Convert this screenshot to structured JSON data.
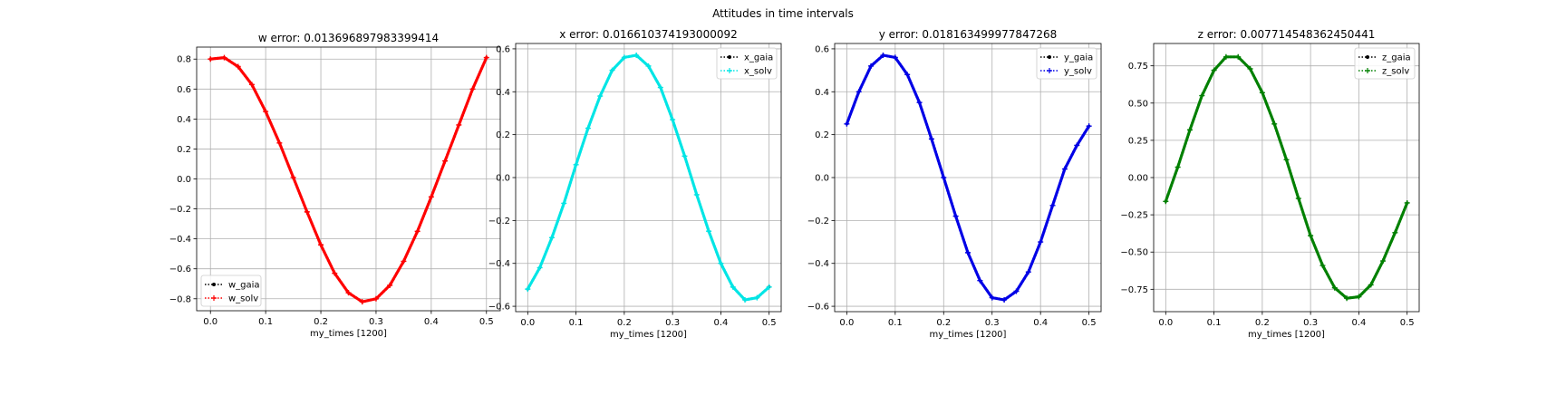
{
  "figure": {
    "suptitle": "Attitudes in time intervals"
  },
  "chart_data": [
    {
      "type": "line",
      "title": "w error: 0.013696897983399414",
      "xlabel": "my_times [1200]",
      "ylabel": "",
      "xlim": [
        -0.025,
        0.525
      ],
      "ylim": [
        -0.88,
        0.88
      ],
      "xticks": [
        "0.0",
        "0.1",
        "0.2",
        "0.3",
        "0.4",
        "0.5"
      ],
      "xtick_values": [
        0.0,
        0.1,
        0.2,
        0.3,
        0.4,
        0.5
      ],
      "yticks": [
        "−0.8",
        "−0.6",
        "−0.4",
        "−0.2",
        "0.0",
        "0.2",
        "0.4",
        "0.6",
        "0.8"
      ],
      "ytick_values": [
        -0.8,
        -0.6,
        -0.4,
        -0.2,
        0.0,
        0.2,
        0.4,
        0.6,
        0.8
      ],
      "grid": true,
      "legend_position": "lower-left",
      "x": [
        0.0,
        0.025,
        0.05,
        0.075,
        0.1,
        0.125,
        0.15,
        0.175,
        0.2,
        0.225,
        0.25,
        0.275,
        0.3,
        0.325,
        0.35,
        0.375,
        0.4,
        0.425,
        0.45,
        0.475,
        0.5
      ],
      "series": [
        {
          "name": "w_gaia",
          "color": "#000000",
          "style": "dotted",
          "marker": "dot",
          "values": [
            0.8,
            0.81,
            0.75,
            0.63,
            0.45,
            0.24,
            0.01,
            -0.22,
            -0.44,
            -0.63,
            -0.76,
            -0.82,
            -0.8,
            -0.71,
            -0.55,
            -0.35,
            -0.12,
            0.12,
            0.36,
            0.6,
            0.81
          ]
        },
        {
          "name": "w_solv",
          "color": "#ff0000",
          "style": "dotted",
          "marker": "plus",
          "values": [
            0.8,
            0.81,
            0.75,
            0.63,
            0.45,
            0.24,
            0.01,
            -0.22,
            -0.44,
            -0.63,
            -0.76,
            -0.82,
            -0.8,
            -0.71,
            -0.55,
            -0.35,
            -0.12,
            0.12,
            0.36,
            0.6,
            0.81
          ]
        }
      ]
    },
    {
      "type": "line",
      "title": "x error: 0.016610374193000092",
      "xlabel": "my_times [1200]",
      "ylabel": "",
      "xlim": [
        -0.025,
        0.525
      ],
      "ylim": [
        -0.625,
        0.625
      ],
      "xticks": [
        "0.0",
        "0.1",
        "0.2",
        "0.3",
        "0.4",
        "0.5"
      ],
      "xtick_values": [
        0.0,
        0.1,
        0.2,
        0.3,
        0.4,
        0.5
      ],
      "yticks": [
        "−0.6",
        "−0.4",
        "−0.2",
        "0.0",
        "0.2",
        "0.4",
        "0.6"
      ],
      "ytick_values": [
        -0.6,
        -0.4,
        -0.2,
        0.0,
        0.2,
        0.4,
        0.6
      ],
      "grid": true,
      "legend_position": "upper-right",
      "x": [
        0.0,
        0.025,
        0.05,
        0.075,
        0.1,
        0.125,
        0.15,
        0.175,
        0.2,
        0.225,
        0.25,
        0.275,
        0.3,
        0.325,
        0.35,
        0.375,
        0.4,
        0.425,
        0.45,
        0.475,
        0.5
      ],
      "series": [
        {
          "name": "x_gaia",
          "color": "#000000",
          "style": "dotted",
          "marker": "dot",
          "values": [
            -0.52,
            -0.42,
            -0.28,
            -0.12,
            0.06,
            0.23,
            0.38,
            0.5,
            0.56,
            0.57,
            0.52,
            0.42,
            0.27,
            0.1,
            -0.08,
            -0.25,
            -0.4,
            -0.51,
            -0.57,
            -0.56,
            -0.51
          ]
        },
        {
          "name": "x_solv",
          "color": "#00e5e5",
          "style": "dotted",
          "marker": "plus",
          "values": [
            -0.52,
            -0.42,
            -0.28,
            -0.12,
            0.06,
            0.23,
            0.38,
            0.5,
            0.56,
            0.57,
            0.52,
            0.42,
            0.27,
            0.1,
            -0.08,
            -0.25,
            -0.4,
            -0.51,
            -0.57,
            -0.56,
            -0.51
          ]
        }
      ]
    },
    {
      "type": "line",
      "title": "y error: 0.018163499977847268",
      "xlabel": "my_times [1200]",
      "ylabel": "",
      "xlim": [
        -0.025,
        0.525
      ],
      "ylim": [
        -0.625,
        0.625
      ],
      "xticks": [
        "0.0",
        "0.1",
        "0.2",
        "0.3",
        "0.4",
        "0.5"
      ],
      "xtick_values": [
        0.0,
        0.1,
        0.2,
        0.3,
        0.4,
        0.5
      ],
      "yticks": [
        "−0.6",
        "−0.4",
        "−0.2",
        "0.0",
        "0.2",
        "0.4",
        "0.6"
      ],
      "ytick_values": [
        -0.6,
        -0.4,
        -0.2,
        0.0,
        0.2,
        0.4,
        0.6
      ],
      "grid": true,
      "legend_position": "upper-right",
      "x": [
        0.0,
        0.025,
        0.05,
        0.075,
        0.1,
        0.125,
        0.15,
        0.175,
        0.2,
        0.225,
        0.25,
        0.275,
        0.3,
        0.325,
        0.35,
        0.375,
        0.4,
        0.425,
        0.45,
        0.475,
        0.5
      ],
      "series": [
        {
          "name": "y_gaia",
          "color": "#000000",
          "style": "dotted",
          "marker": "dot",
          "values": [
            0.25,
            0.4,
            0.52,
            0.57,
            0.56,
            0.48,
            0.35,
            0.18,
            0.0,
            -0.18,
            -0.35,
            -0.48,
            -0.56,
            -0.57,
            -0.53,
            -0.44,
            -0.3,
            -0.13,
            0.04,
            0.15,
            0.24
          ]
        },
        {
          "name": "y_solv",
          "color": "#0000e6",
          "style": "dotted",
          "marker": "plus",
          "values": [
            0.25,
            0.4,
            0.52,
            0.57,
            0.56,
            0.48,
            0.35,
            0.18,
            0.0,
            -0.18,
            -0.35,
            -0.48,
            -0.56,
            -0.57,
            -0.53,
            -0.44,
            -0.3,
            -0.13,
            0.04,
            0.15,
            0.24
          ]
        }
      ]
    },
    {
      "type": "line",
      "title": "z error: 0.007714548362450441",
      "xlabel": "my_times [1200]",
      "ylabel": "",
      "xlim": [
        -0.025,
        0.525
      ],
      "ylim": [
        -0.9,
        0.9
      ],
      "xticks": [
        "0.0",
        "0.1",
        "0.2",
        "0.3",
        "0.4",
        "0.5"
      ],
      "xtick_values": [
        0.0,
        0.1,
        0.2,
        0.3,
        0.4,
        0.5
      ],
      "yticks": [
        "−0.75",
        "−0.50",
        "−0.25",
        "0.00",
        "0.25",
        "0.50",
        "0.75"
      ],
      "ytick_values": [
        -0.75,
        -0.5,
        -0.25,
        0.0,
        0.25,
        0.5,
        0.75
      ],
      "grid": true,
      "legend_position": "upper-right",
      "x": [
        0.0,
        0.025,
        0.05,
        0.075,
        0.1,
        0.125,
        0.15,
        0.175,
        0.2,
        0.225,
        0.25,
        0.275,
        0.3,
        0.325,
        0.35,
        0.375,
        0.4,
        0.425,
        0.45,
        0.475,
        0.5
      ],
      "series": [
        {
          "name": "z_gaia",
          "color": "#000000",
          "style": "dotted",
          "marker": "dot",
          "values": [
            -0.16,
            0.07,
            0.32,
            0.55,
            0.72,
            0.81,
            0.81,
            0.73,
            0.57,
            0.36,
            0.12,
            -0.14,
            -0.39,
            -0.59,
            -0.74,
            -0.81,
            -0.8,
            -0.72,
            -0.56,
            -0.37,
            -0.17
          ]
        },
        {
          "name": "z_solv",
          "color": "#008000",
          "style": "dotted",
          "marker": "plus",
          "values": [
            -0.16,
            0.07,
            0.32,
            0.55,
            0.72,
            0.81,
            0.81,
            0.73,
            0.57,
            0.36,
            0.12,
            -0.14,
            -0.39,
            -0.59,
            -0.74,
            -0.81,
            -0.8,
            -0.72,
            -0.56,
            -0.37,
            -0.17
          ]
        }
      ]
    }
  ]
}
